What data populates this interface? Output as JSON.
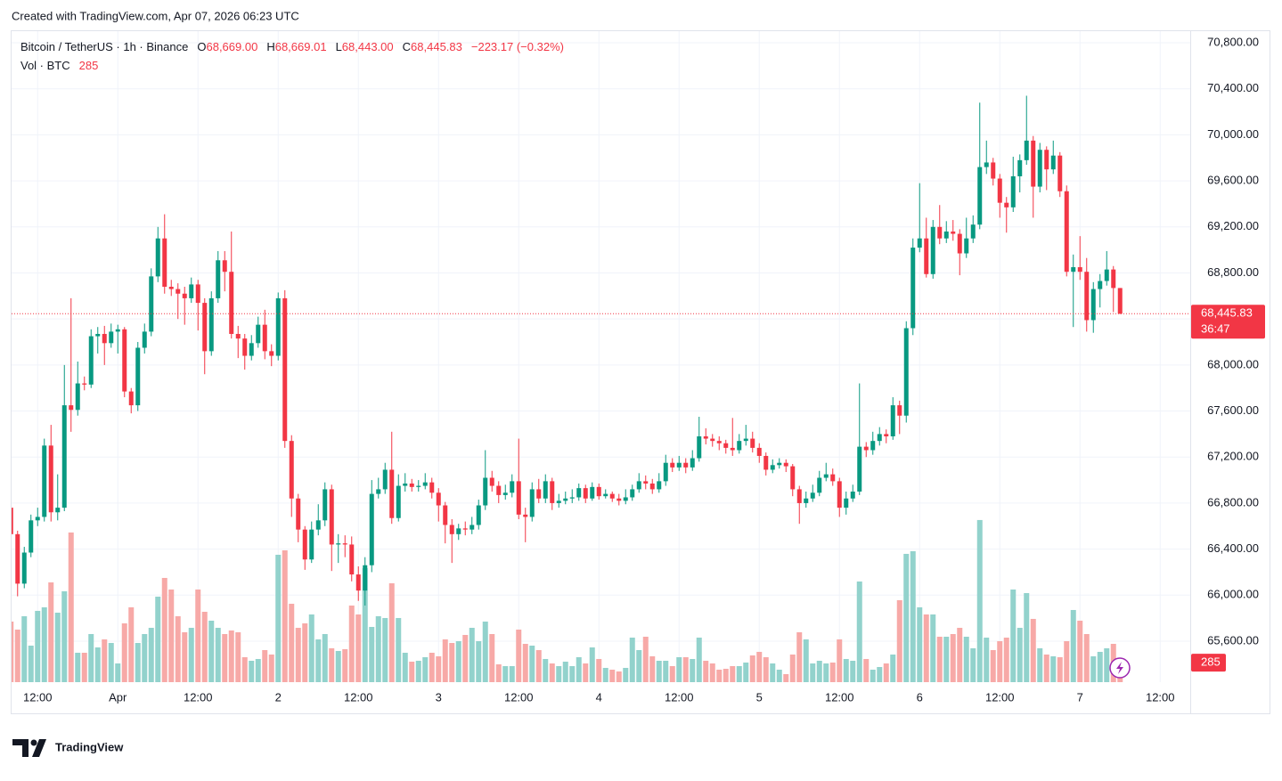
{
  "caption": "Created with TradingView.com, Apr 07, 2026 06:23 UTC",
  "brand": "TradingView",
  "chart_data": {
    "type": "candlestick",
    "symbol": "Bitcoin / TetherUS · 1h · Binance",
    "ohlc_legend": [
      {
        "key": "O",
        "label": "68,669.00"
      },
      {
        "key": "H",
        "label": "68,669.01"
      },
      {
        "key": "L",
        "label": "68,443.00"
      },
      {
        "key": "C",
        "label": "68,445.83"
      }
    ],
    "change": "−223.17 (−0.32%)",
    "volume_legend": {
      "name": "Vol · BTC",
      "label": "285"
    },
    "last_price_label": "68,445.83",
    "countdown": "36:47",
    "colors": {
      "up": "#089981",
      "down": "#f23645",
      "up_volume": "#92d2cc",
      "down_volume": "#f7a9a7"
    },
    "grid": true,
    "xlim": [
      0.1,
      176.5
    ],
    "ylim": [
      65244,
      70901
    ],
    "vlim": [
      0,
      9500
    ],
    "xticks": [
      {
        "value": 4,
        "label": "12:00"
      },
      {
        "value": 16,
        "label": "Apr"
      },
      {
        "value": 28,
        "label": "12:00"
      },
      {
        "value": 40,
        "label": "2"
      },
      {
        "value": 52,
        "label": "12:00"
      },
      {
        "value": 64,
        "label": "3"
      },
      {
        "value": 76,
        "label": "12:00"
      },
      {
        "value": 88,
        "label": "4"
      },
      {
        "value": 100,
        "label": "12:00"
      },
      {
        "value": 112,
        "label": "5"
      },
      {
        "value": 124,
        "label": "12:00"
      },
      {
        "value": 136,
        "label": "6"
      },
      {
        "value": 148,
        "label": "12:00"
      },
      {
        "value": 160,
        "label": "7"
      },
      {
        "value": 172,
        "label": "12:00"
      }
    ],
    "yticks": [
      {
        "value": 70800,
        "label": "70,800.00"
      },
      {
        "value": 70400,
        "label": "70,400.00"
      },
      {
        "value": 70000,
        "label": "70,000.00"
      },
      {
        "value": 69600,
        "label": "69,600.00"
      },
      {
        "value": 69200,
        "label": "69,200.00"
      },
      {
        "value": 68800,
        "label": "68,800.00"
      },
      {
        "value": 68400,
        "label": "68,400.00"
      },
      {
        "value": 68000,
        "label": "68,000.00"
      },
      {
        "value": 67600,
        "label": "67,600.00"
      },
      {
        "value": 67200,
        "label": "67,200.00"
      },
      {
        "value": 66800,
        "label": "66,800.00"
      },
      {
        "value": 66400,
        "label": "66,400.00"
      },
      {
        "value": 66000,
        "label": "66,000.00"
      },
      {
        "value": 65600,
        "label": "65,600.00"
      }
    ],
    "ohlc": [
      [
        66760,
        67330,
        66380,
        66530
      ],
      [
        66530,
        66560,
        65990,
        66100
      ],
      [
        66100,
        66420,
        66060,
        66370
      ],
      [
        66370,
        66700,
        66330,
        66650
      ],
      [
        66650,
        66760,
        66600,
        66680
      ],
      [
        66680,
        67360,
        66640,
        67300
      ],
      [
        67300,
        67480,
        66640,
        66720
      ],
      [
        66720,
        67050,
        66650,
        66760
      ],
      [
        66760,
        68000,
        66730,
        67650
      ],
      [
        67650,
        68580,
        67420,
        67610
      ],
      [
        67610,
        68030,
        67560,
        67840
      ],
      [
        67840,
        67900,
        67780,
        67830
      ],
      [
        67830,
        68310,
        67800,
        68250
      ],
      [
        68250,
        68330,
        68100,
        68270
      ],
      [
        68270,
        68340,
        68000,
        68190
      ],
      [
        68190,
        68360,
        68150,
        68290
      ],
      [
        68290,
        68350,
        68100,
        68310
      ],
      [
        68310,
        68330,
        67720,
        67770
      ],
      [
        67770,
        67800,
        67580,
        67650
      ],
      [
        67650,
        68200,
        67600,
        68150
      ],
      [
        68150,
        68360,
        68100,
        68290
      ],
      [
        68290,
        68840,
        68250,
        68770
      ],
      [
        68770,
        69200,
        68720,
        69100
      ],
      [
        69100,
        69310,
        68620,
        68680
      ],
      [
        68680,
        68740,
        68600,
        68660
      ],
      [
        68660,
        68710,
        68400,
        68620
      ],
      [
        68620,
        68680,
        68350,
        68580
      ],
      [
        68580,
        68760,
        68540,
        68700
      ],
      [
        68700,
        68740,
        68300,
        68540
      ],
      [
        68540,
        68580,
        67920,
        68120
      ],
      [
        68120,
        68640,
        68080,
        68580
      ],
      [
        68580,
        68990,
        68540,
        68910
      ],
      [
        68910,
        68990,
        68640,
        68810
      ],
      [
        68810,
        69160,
        68230,
        68270
      ],
      [
        68270,
        68340,
        68060,
        68230
      ],
      [
        68230,
        68270,
        67960,
        68080
      ],
      [
        68080,
        68260,
        68040,
        68190
      ],
      [
        68190,
        68420,
        68150,
        68350
      ],
      [
        68350,
        68480,
        68050,
        68120
      ],
      [
        68120,
        68180,
        67990,
        68080
      ],
      [
        68080,
        68630,
        68040,
        68580
      ],
      [
        68580,
        68650,
        67280,
        67340
      ],
      [
        67340,
        67390,
        66680,
        66840
      ],
      [
        66840,
        66880,
        66460,
        66570
      ],
      [
        66570,
        66600,
        66220,
        66310
      ],
      [
        66310,
        66640,
        66280,
        66570
      ],
      [
        66570,
        66790,
        66520,
        66650
      ],
      [
        66650,
        66980,
        66600,
        66920
      ],
      [
        66920,
        66960,
        66210,
        66440
      ],
      [
        66440,
        66530,
        66280,
        66450
      ],
      [
        66450,
        66520,
        66330,
        66440
      ],
      [
        66440,
        66510,
        66120,
        66180
      ],
      [
        66180,
        66250,
        65950,
        66040
      ],
      [
        66040,
        66330,
        65910,
        66260
      ],
      [
        66260,
        67000,
        66200,
        66880
      ],
      [
        66880,
        67020,
        66840,
        66920
      ],
      [
        66920,
        67150,
        66880,
        67090
      ],
      [
        67090,
        67420,
        66620,
        66670
      ],
      [
        66670,
        67050,
        66640,
        66950
      ],
      [
        66950,
        67060,
        66900,
        66970
      ],
      [
        66970,
        67010,
        66900,
        66940
      ],
      [
        66940,
        67000,
        66900,
        66950
      ],
      [
        66950,
        67060,
        66920,
        66980
      ],
      [
        66980,
        67020,
        66840,
        66890
      ],
      [
        66890,
        66930,
        66640,
        66780
      ],
      [
        66780,
        66810,
        66450,
        66610
      ],
      [
        66610,
        66660,
        66280,
        66530
      ],
      [
        66530,
        66620,
        66480,
        66580
      ],
      [
        66580,
        66640,
        66520,
        66570
      ],
      [
        66570,
        66680,
        66530,
        66610
      ],
      [
        66610,
        66830,
        66570,
        66780
      ],
      [
        66780,
        67260,
        66740,
        67020
      ],
      [
        67020,
        67080,
        66900,
        66950
      ],
      [
        66950,
        66990,
        66800,
        66870
      ],
      [
        66870,
        66960,
        66830,
        66890
      ],
      [
        66890,
        67050,
        66850,
        66990
      ],
      [
        66990,
        67360,
        66660,
        66700
      ],
      [
        66700,
        66760,
        66460,
        66680
      ],
      [
        66680,
        66980,
        66640,
        66920
      ],
      [
        66920,
        67010,
        66800,
        66840
      ],
      [
        66840,
        67050,
        66800,
        66990
      ],
      [
        66990,
        67020,
        66740,
        66800
      ],
      [
        66800,
        66880,
        66760,
        66820
      ],
      [
        66820,
        66900,
        66790,
        66840
      ],
      [
        66840,
        66920,
        66800,
        66850
      ],
      [
        66850,
        66970,
        66820,
        66930
      ],
      [
        66930,
        66960,
        66800,
        66840
      ],
      [
        66840,
        66980,
        66820,
        66940
      ],
      [
        66940,
        66970,
        66830,
        66860
      ],
      [
        66860,
        66920,
        66840,
        66880
      ],
      [
        66880,
        66900,
        66810,
        66840
      ],
      [
        66840,
        66880,
        66780,
        66820
      ],
      [
        66820,
        66920,
        66790,
        66850
      ],
      [
        66850,
        66960,
        66820,
        66920
      ],
      [
        66920,
        67060,
        66890,
        66990
      ],
      [
        66990,
        67040,
        66920,
        66970
      ],
      [
        66970,
        67010,
        66880,
        66920
      ],
      [
        66920,
        67060,
        66890,
        66990
      ],
      [
        66990,
        67220,
        66950,
        67150
      ],
      [
        67150,
        67190,
        67070,
        67110
      ],
      [
        67110,
        67210,
        67080,
        67150
      ],
      [
        67150,
        67190,
        67060,
        67110
      ],
      [
        67110,
        67260,
        67080,
        67190
      ],
      [
        67190,
        67550,
        67160,
        67380
      ],
      [
        67380,
        67450,
        67310,
        67360
      ],
      [
        67360,
        67400,
        67290,
        67340
      ],
      [
        67340,
        67380,
        67260,
        67320
      ],
      [
        67320,
        67350,
        67230,
        67280
      ],
      [
        67280,
        67540,
        67210,
        67260
      ],
      [
        67260,
        67400,
        67230,
        67340
      ],
      [
        67340,
        67480,
        67300,
        67360
      ],
      [
        67360,
        67420,
        67240,
        67280
      ],
      [
        67280,
        67320,
        67150,
        67210
      ],
      [
        67210,
        67240,
        67040,
        67090
      ],
      [
        67090,
        67180,
        67060,
        67130
      ],
      [
        67130,
        67190,
        67100,
        67150
      ],
      [
        67150,
        67180,
        67070,
        67120
      ],
      [
        67120,
        67140,
        66860,
        66920
      ],
      [
        66920,
        66950,
        66620,
        66800
      ],
      [
        66800,
        66900,
        66760,
        66840
      ],
      [
        66840,
        66960,
        66810,
        66890
      ],
      [
        66890,
        67080,
        66860,
        67020
      ],
      [
        67020,
        67150,
        66990,
        67050
      ],
      [
        67050,
        67100,
        66950,
        66990
      ],
      [
        66990,
        67020,
        66680,
        66760
      ],
      [
        66760,
        66900,
        66700,
        66840
      ],
      [
        66840,
        66960,
        66810,
        66900
      ],
      [
        66900,
        67840,
        66870,
        67290
      ],
      [
        67290,
        67330,
        67200,
        67260
      ],
      [
        67260,
        67420,
        67220,
        67340
      ],
      [
        67340,
        67460,
        67300,
        67400
      ],
      [
        67400,
        67440,
        67320,
        67380
      ],
      [
        67380,
        67720,
        67350,
        67650
      ],
      [
        67650,
        67690,
        67400,
        67560
      ],
      [
        67560,
        68380,
        67500,
        68320
      ],
      [
        68320,
        69100,
        68260,
        69020
      ],
      [
        69020,
        69580,
        68980,
        69100
      ],
      [
        69100,
        69280,
        68760,
        68790
      ],
      [
        68790,
        69260,
        68750,
        69200
      ],
      [
        69200,
        69390,
        69050,
        69100
      ],
      [
        69100,
        69250,
        69060,
        69160
      ],
      [
        69160,
        69260,
        69080,
        69140
      ],
      [
        69140,
        69180,
        68780,
        68970
      ],
      [
        68970,
        69280,
        68930,
        69100
      ],
      [
        69100,
        69300,
        69060,
        69220
      ],
      [
        69220,
        70280,
        69180,
        69720
      ],
      [
        69720,
        69950,
        69660,
        69760
      ],
      [
        69760,
        69800,
        69560,
        69620
      ],
      [
        69620,
        69660,
        69280,
        69410
      ],
      [
        69410,
        69460,
        69150,
        69370
      ],
      [
        69370,
        69810,
        69330,
        69640
      ],
      [
        69640,
        69830,
        69500,
        69780
      ],
      [
        69780,
        70340,
        69740,
        69950
      ],
      [
        69950,
        69990,
        69280,
        69550
      ],
      [
        69550,
        69930,
        69500,
        69870
      ],
      [
        69870,
        69900,
        69520,
        69700
      ],
      [
        69700,
        69950,
        69660,
        69820
      ],
      [
        69820,
        69850,
        69460,
        69510
      ],
      [
        69510,
        69560,
        68770,
        68810
      ],
      [
        68810,
        68960,
        68330,
        68850
      ],
      [
        68850,
        69120,
        68740,
        68810
      ],
      [
        68810,
        68930,
        68290,
        68390
      ],
      [
        68390,
        68720,
        68280,
        68660
      ],
      [
        68660,
        68790,
        68500,
        68730
      ],
      [
        68730,
        68990,
        68690,
        68830
      ],
      [
        68830,
        68860,
        68460,
        68669
      ],
      [
        68669,
        68669.01,
        68443,
        68445.83
      ]
    ],
    "volume": [
      884,
      767,
      962,
      533,
      1040,
      1092,
      1456,
      1014,
      1326,
      2184,
      429,
      429,
      702,
      507,
      624,
      572,
      273,
      858,
      1092,
      572,
      702,
      793,
      1248,
      1521,
      1352,
      962,
      728,
      793,
      1352,
      1027,
      897,
      793,
      702,
      754,
      728,
      364,
      312,
      338,
      468,
      403,
      1859,
      1924,
      1144,
      793,
      858,
      988,
      624,
      702,
      494,
      455,
      481,
      1118,
      988,
      1664,
      806,
      962,
      936,
      1443,
      936,
      429,
      299,
      312,
      364,
      429,
      377,
      624,
      572,
      598,
      689,
      793,
      598,
      884,
      702,
      260,
      234,
      234,
      767,
      559,
      533,
      468,
      338,
      273,
      234,
      299,
      234,
      364,
      273,
      507,
      338,
      208,
      182,
      156,
      208,
      650,
      468,
      663,
      377,
      312,
      312,
      234,
      364,
      364,
      338,
      650,
      312,
      273,
      182,
      195,
      234,
      234,
      286,
      390,
      442,
      364,
      273,
      182,
      117,
      403,
      728,
      624,
      273,
      312,
      273,
      286,
      624,
      338,
      312,
      1469,
      338,
      182,
      221,
      273,
      403,
      1196,
      1872,
      1911,
      1092,
      988,
      988,
      663,
      663,
      702,
      793,
      663,
      494,
      2366,
      650,
      468,
      598,
      650,
      1352,
      793,
      1300,
      923,
      494,
      403,
      377,
      364,
      598,
      1053,
      897,
      702,
      377,
      442,
      494,
      559,
      285
    ]
  }
}
